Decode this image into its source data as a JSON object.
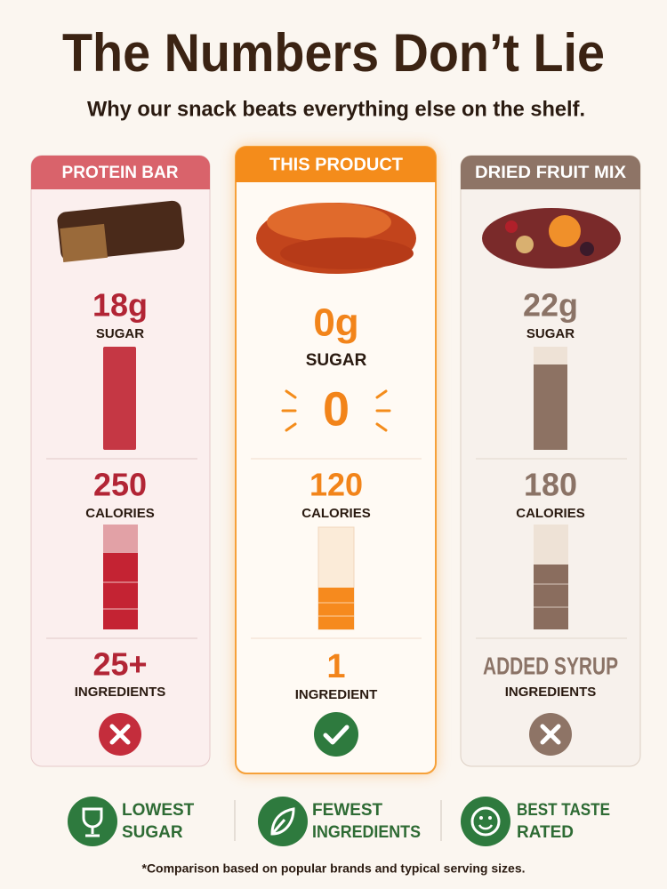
{
  "header": {
    "title": "The Numbers Don’t Lie",
    "subtitle": "Why our snack beats everything else on the shelf."
  },
  "columns": [
    {
      "label": "PROTEIN BAR",
      "sugar": "18g",
      "sugar_label": "SUGAR",
      "calories": "250",
      "calories_label": "CALORIES",
      "ingredients": "25+",
      "ingredients_label": "INGREDIENTS"
    },
    {
      "label": "THIS PRODUCT",
      "sugar": "0g",
      "sugar_label": "SUGAR",
      "highlight": "0",
      "calories": "120",
      "calories_label": "CALORIES",
      "ingredients": "1",
      "ingredients_label": "INGREDIENT"
    },
    {
      "label": "DRIED FRUIT MIX",
      "sugar": "22g",
      "sugar_label": "SUGAR",
      "calories": "180",
      "calories_label": "CALORIES",
      "ingredients": "ADDED SYRUP",
      "ingredients_label": "INGREDIENTS"
    }
  ],
  "badges": [
    {
      "line1": "LOWEST",
      "line2": "SUGAR"
    },
    {
      "line1": "FEWEST",
      "line2": "INGREDIENTS"
    },
    {
      "line1": "BEST TASTE",
      "line2": "RATED"
    }
  ],
  "footnote": "*Comparison based on popular brands and typical serving sizes."
}
